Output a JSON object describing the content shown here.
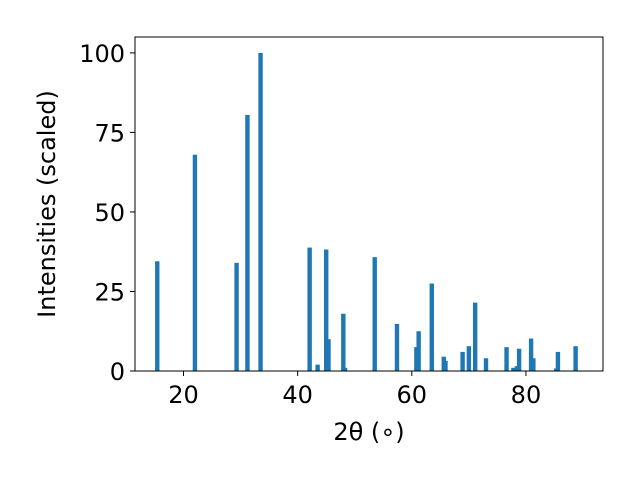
{
  "chart_data": {
    "type": "bar",
    "xlabel": "2θ (∘)",
    "ylabel": "Intensities (scaled)",
    "xlim": [
      11.5,
      93.5
    ],
    "ylim": [
      0,
      105
    ],
    "x_ticks": [
      20,
      40,
      60,
      80
    ],
    "y_ticks": [
      0,
      25,
      50,
      75,
      100
    ],
    "bar_color": "#1f77b4",
    "grid": false,
    "x": [
      15.4,
      22.0,
      29.3,
      31.2,
      33.5,
      42.1,
      43.5,
      45.0,
      45.4,
      48.0,
      48.3,
      53.5,
      57.4,
      60.8,
      61.2,
      63.5,
      65.6,
      65.9,
      68.9,
      70.0,
      71.1,
      73.0,
      76.6,
      77.8,
      78.4,
      78.8,
      80.9,
      81.3,
      85.3,
      85.6,
      88.7
    ],
    "values": [
      34.5,
      68.0,
      34.0,
      80.5,
      100.0,
      38.8,
      2.0,
      38.2,
      10.0,
      18.0,
      1.0,
      35.8,
      14.8,
      7.5,
      12.5,
      27.5,
      4.5,
      3.2,
      6.0,
      7.8,
      21.5,
      4.0,
      7.5,
      1.0,
      1.5,
      7.0,
      10.2,
      4.0,
      0.8,
      6.0,
      7.8
    ]
  }
}
